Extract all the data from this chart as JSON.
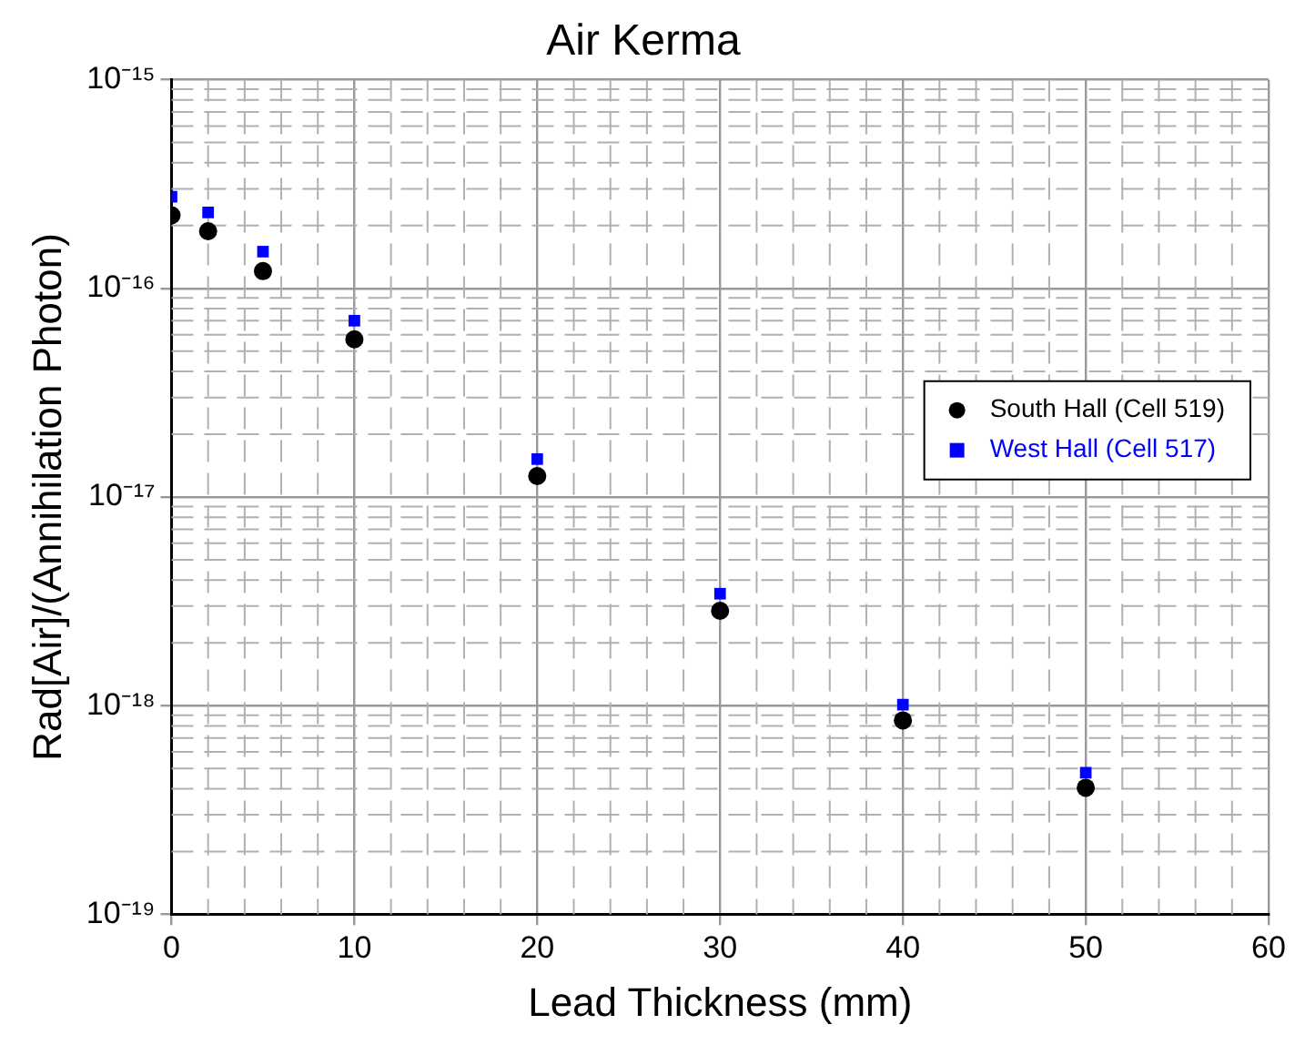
{
  "chart_data": {
    "type": "scatter",
    "title": "Air Kerma",
    "xlabel": "Lead Thickness (mm)",
    "ylabel": "Rad[Air]/(Annihilation Photon)",
    "x": [
      0,
      2,
      5,
      10,
      20,
      30,
      40,
      50
    ],
    "series": [
      {
        "name": "South Hall (Cell 519)",
        "color": "#000000",
        "marker": "circle",
        "values": [
          2.24e-16,
          1.88e-16,
          1.21e-16,
          5.7e-17,
          1.26e-17,
          2.85e-18,
          8.5e-19,
          4.04e-19
        ]
      },
      {
        "name": "West Hall (Cell 517)",
        "color": "#0000ff",
        "marker": "square",
        "values": [
          2.75e-16,
          2.31e-16,
          1.5e-16,
          7e-17,
          1.52e-17,
          3.44e-18,
          1.01e-18,
          4.77e-19
        ]
      }
    ],
    "log": "y",
    "xlim": [
      0,
      60
    ],
    "xticks": [
      0,
      10,
      20,
      30,
      40,
      50,
      60
    ],
    "ylim": [
      1e-19,
      1e-15
    ],
    "yticks": [
      {
        "value": 1e-19,
        "label": "10⁻¹⁹"
      },
      {
        "value": 1e-18,
        "label": "10⁻¹⁸"
      },
      {
        "value": 1e-17,
        "label": "10⁻¹⁷"
      },
      {
        "value": 1e-16,
        "label": "10⁻¹⁶"
      },
      {
        "value": 1e-15,
        "label": "10⁻¹⁵"
      }
    ],
    "grid": true,
    "legend": "right"
  }
}
